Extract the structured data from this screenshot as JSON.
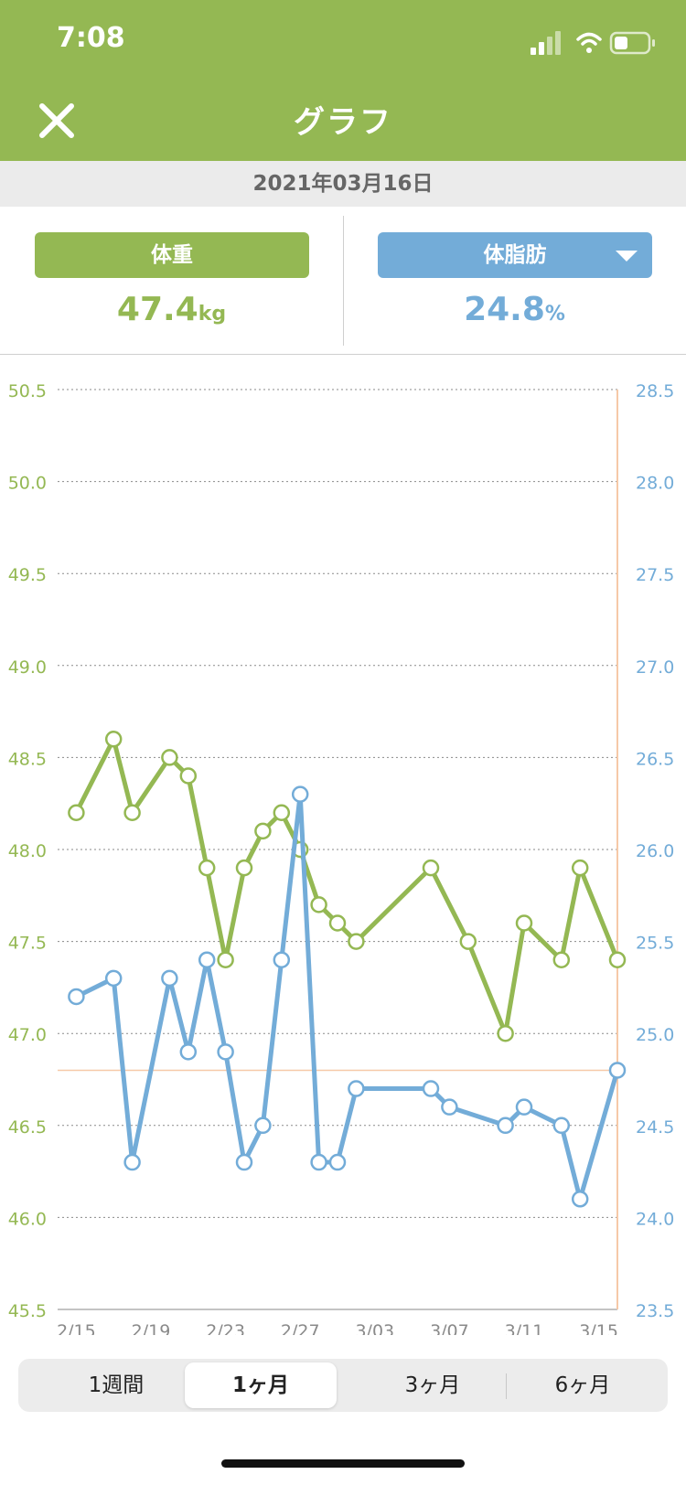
{
  "status": {
    "time": "7:08"
  },
  "header": {
    "title": "グラフ",
    "close_icon": "close-icon"
  },
  "date": "2021年03月16日",
  "weight": {
    "label": "体重",
    "value": "47.4",
    "unit": "kg",
    "color": "#94b853"
  },
  "fat": {
    "label": "体脂肪",
    "value": "24.8",
    "unit": "%",
    "color": "#73acd8"
  },
  "range_tabs": [
    {
      "label": "1週間",
      "active": false
    },
    {
      "label": "1ヶ月",
      "active": true
    },
    {
      "label": "3ヶ月",
      "active": false
    },
    {
      "label": "6ヶ月",
      "active": false
    }
  ],
  "chart_data": {
    "type": "line",
    "x_ticks": [
      "2/15",
      "2/19",
      "2/23",
      "2/27",
      "3/03",
      "3/07",
      "3/11",
      "3/15"
    ],
    "y_left": {
      "ticks": [
        "50.5",
        "50.0",
        "49.5",
        "49.0",
        "48.5",
        "48.0",
        "47.5",
        "47.0",
        "46.5",
        "46.0",
        "45.5"
      ],
      "range": [
        45.5,
        50.5
      ]
    },
    "y_right": {
      "ticks": [
        "28.5",
        "28.0",
        "27.5",
        "27.0",
        "26.5",
        "26.0",
        "25.5",
        "25.0",
        "24.5",
        "24.0",
        "23.5"
      ],
      "range": [
        23.5,
        28.5
      ]
    },
    "series": [
      {
        "axis": "left",
        "color": "#94b853",
        "points": [
          [
            "2/15",
            48.2
          ],
          [
            "2/17",
            48.6
          ],
          [
            "2/18",
            48.2
          ],
          [
            "2/20",
            48.5
          ],
          [
            "2/21",
            48.4
          ],
          [
            "2/22",
            47.9
          ],
          [
            "2/23",
            47.4
          ],
          [
            "2/24",
            47.9
          ],
          [
            "2/25",
            48.1
          ],
          [
            "2/26",
            48.2
          ],
          [
            "2/27",
            48.0
          ],
          [
            "2/28",
            47.7
          ],
          [
            "3/01",
            47.6
          ],
          [
            "3/02",
            47.5
          ],
          [
            "3/06",
            47.9
          ],
          [
            "3/08",
            47.5
          ],
          [
            "3/10",
            47.0
          ],
          [
            "3/11",
            47.6
          ],
          [
            "3/13",
            47.4
          ],
          [
            "3/14",
            47.9
          ],
          [
            "3/16",
            47.4
          ]
        ]
      },
      {
        "axis": "right",
        "color": "#73acd8",
        "points": [
          [
            "2/15",
            25.2
          ],
          [
            "2/17",
            25.3
          ],
          [
            "2/18",
            24.3
          ],
          [
            "2/20",
            25.3
          ],
          [
            "2/21",
            24.9
          ],
          [
            "2/22",
            25.4
          ],
          [
            "2/23",
            24.9
          ],
          [
            "2/24",
            24.3
          ],
          [
            "2/25",
            24.5
          ],
          [
            "2/26",
            25.4
          ],
          [
            "2/27",
            26.3
          ],
          [
            "2/28",
            24.3
          ],
          [
            "3/01",
            24.3
          ],
          [
            "3/02",
            24.7
          ],
          [
            "3/06",
            24.7
          ],
          [
            "3/07",
            24.6
          ],
          [
            "3/10",
            24.5
          ],
          [
            "3/11",
            24.6
          ],
          [
            "3/13",
            24.5
          ],
          [
            "3/14",
            24.1
          ],
          [
            "3/16",
            24.8
          ]
        ]
      }
    ],
    "current_date": "3/16",
    "current_fat_value": 24.8,
    "grid": true
  }
}
